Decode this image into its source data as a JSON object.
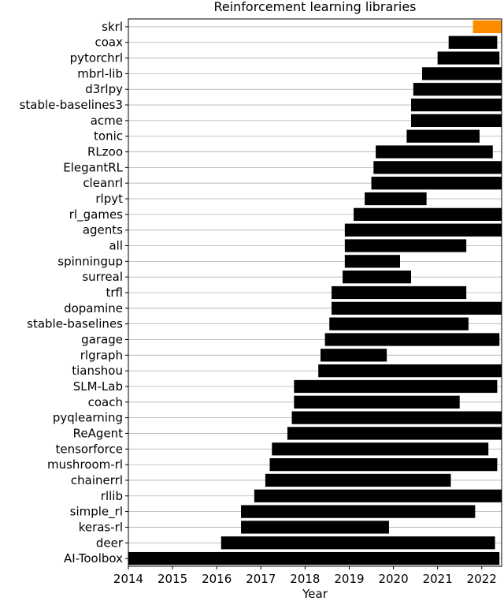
{
  "chart_data": {
    "type": "bar",
    "orientation": "horizontal",
    "title": "Reinforcement learning libraries",
    "xlabel": "Year",
    "ylabel": "",
    "xlim": [
      2014.0,
      2022.45
    ],
    "xticks": [
      "2014",
      "2015",
      "2016",
      "2017",
      "2018",
      "2019",
      "2020",
      "2021",
      "2022"
    ],
    "grid": "horizontal",
    "colors": {
      "default": "#000000",
      "highlight": "#ff8c00"
    },
    "bars": [
      {
        "name": "skrl",
        "start": 2021.8,
        "end": 2022.45,
        "highlight": true
      },
      {
        "name": "coax",
        "start": 2021.25,
        "end": 2022.35
      },
      {
        "name": "pytorchrl",
        "start": 2021.0,
        "end": 2022.4
      },
      {
        "name": "mbrl-lib",
        "start": 2020.65,
        "end": 2022.45
      },
      {
        "name": "d3rlpy",
        "start": 2020.45,
        "end": 2022.45
      },
      {
        "name": "stable-baselines3",
        "start": 2020.4,
        "end": 2022.45
      },
      {
        "name": "acme",
        "start": 2020.4,
        "end": 2022.45
      },
      {
        "name": "tonic",
        "start": 2020.3,
        "end": 2021.95
      },
      {
        "name": "RLzoo",
        "start": 2019.6,
        "end": 2022.25
      },
      {
        "name": "ElegantRL",
        "start": 2019.55,
        "end": 2022.45
      },
      {
        "name": "cleanrl",
        "start": 2019.5,
        "end": 2022.45
      },
      {
        "name": "rlpyt",
        "start": 2019.35,
        "end": 2020.75
      },
      {
        "name": "rl_games",
        "start": 2019.1,
        "end": 2022.45
      },
      {
        "name": "agents",
        "start": 2018.9,
        "end": 2022.45
      },
      {
        "name": "all",
        "start": 2018.9,
        "end": 2021.65
      },
      {
        "name": "spinningup",
        "start": 2018.9,
        "end": 2020.15
      },
      {
        "name": "surreal",
        "start": 2018.85,
        "end": 2020.4
      },
      {
        "name": "trfl",
        "start": 2018.6,
        "end": 2021.65
      },
      {
        "name": "dopamine",
        "start": 2018.6,
        "end": 2022.45
      },
      {
        "name": "stable-baselines",
        "start": 2018.55,
        "end": 2021.7
      },
      {
        "name": "garage",
        "start": 2018.45,
        "end": 2022.4
      },
      {
        "name": "rlgraph",
        "start": 2018.35,
        "end": 2019.85
      },
      {
        "name": "tianshou",
        "start": 2018.3,
        "end": 2022.45
      },
      {
        "name": "SLM-Lab",
        "start": 2017.75,
        "end": 2022.35
      },
      {
        "name": "coach",
        "start": 2017.75,
        "end": 2021.5
      },
      {
        "name": "pyqlearning",
        "start": 2017.7,
        "end": 2022.45
      },
      {
        "name": "ReAgent",
        "start": 2017.6,
        "end": 2022.45
      },
      {
        "name": "tensorforce",
        "start": 2017.25,
        "end": 2022.15
      },
      {
        "name": "mushroom-rl",
        "start": 2017.2,
        "end": 2022.35
      },
      {
        "name": "chainerrl",
        "start": 2017.1,
        "end": 2021.3
      },
      {
        "name": "rllib",
        "start": 2016.85,
        "end": 2022.45
      },
      {
        "name": "simple_rl",
        "start": 2016.55,
        "end": 2021.85
      },
      {
        "name": "keras-rl",
        "start": 2016.55,
        "end": 2019.9
      },
      {
        "name": "deer",
        "start": 2016.1,
        "end": 2022.3
      },
      {
        "name": "AI-Toolbox",
        "start": 2014.0,
        "end": 2022.4
      }
    ]
  }
}
